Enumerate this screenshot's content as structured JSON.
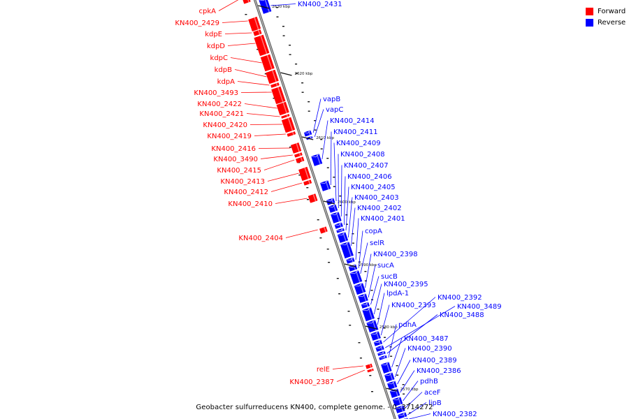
{
  "caption": "Geobacter sulfurreducens KN400, complete genome. - 0..3714272",
  "legend": [
    {
      "label": "Forward",
      "color": "#ff0000"
    },
    {
      "label": "Reverse",
      "color": "#0000ff"
    }
  ],
  "colors": {
    "forward": "#ff0000",
    "reverse": "#0000ff",
    "backbone": "#8c8c8c"
  },
  "ticks": [
    {
      "label": "2630 kbp",
      "pos_kbp": 2630
    },
    {
      "label": "2620 kbp",
      "pos_kbp": 2620
    },
    {
      "label": "2610 kbp",
      "pos_kbp": 2610
    },
    {
      "label": "2600 kbp",
      "pos_kbp": 2600
    },
    {
      "label": "2590 kbp",
      "pos_kbp": 2590
    },
    {
      "label": "2580 kbp",
      "pos_kbp": 2580
    },
    {
      "label": "2570 kbp",
      "pos_kbp": 2570
    }
  ],
  "forward_genes": [
    "cpkA",
    "KN400_2429",
    "kdpE",
    "kdpD",
    "kdpC",
    "kdpB",
    "kdpA",
    "KN400_3493",
    "KN400_2422",
    "KN400_2421",
    "KN400_2420",
    "KN400_2419",
    "KN400_2416",
    "KN400_3490",
    "KN400_2415",
    "KN400_2413",
    "KN400_2412",
    "KN400_2410",
    "KN400_2404",
    "relE",
    "KN400_2387"
  ],
  "reverse_genes": [
    "KN400_2431",
    "vapB",
    "vapC",
    "KN400_2414",
    "KN400_2411",
    "KN400_2409",
    "KN400_2408",
    "KN400_2407",
    "KN400_2406",
    "KN400_2405",
    "KN400_2403",
    "KN400_2402",
    "KN400_2401",
    "copA",
    "selR",
    "KN400_2398",
    "sucA",
    "sucB",
    "KN400_2395",
    "lpdA-1",
    "KN400_2393",
    "KN400_2392",
    "KN400_3489",
    "KN400_3488",
    "pdhA",
    "KN400_3487",
    "KN400_2390",
    "KN400_2389",
    "KN400_2386",
    "pdhB",
    "aceF",
    "lipB",
    "KN400_2382"
  ]
}
